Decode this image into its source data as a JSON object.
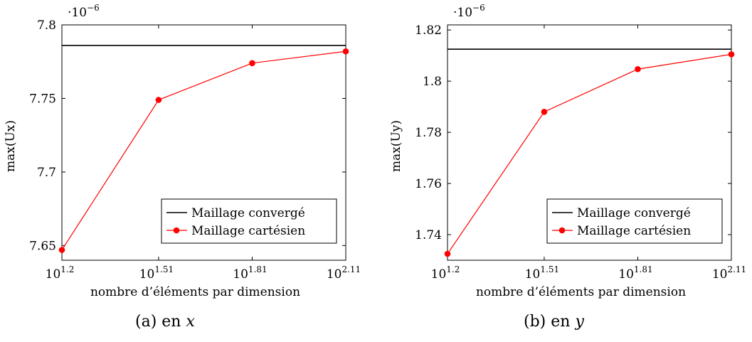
{
  "chart_data": [
    {
      "type": "line",
      "caption_label": "(a) en",
      "caption_var": "x",
      "xlabel": "nombre d’éléments par dimension",
      "ylabel": "max(Ux)",
      "scale_base": "·10",
      "scale_exp": "−6",
      "x_scale": "log",
      "x": [
        1.2,
        1.51,
        1.81,
        2.11
      ],
      "x_tick_base": "10",
      "x_tick_exps": [
        "1.2",
        "1.51",
        "1.81",
        "2.11"
      ],
      "ylim": [
        7.64,
        7.8
      ],
      "y_ticks": [
        7.65,
        7.7,
        7.75,
        7.8
      ],
      "y_tick_labels": [
        "7.65",
        "7.7",
        "7.75",
        "7.8"
      ],
      "legend_position": "bottom-right",
      "series": [
        {
          "name": "Maillage convergé",
          "color": "#000000",
          "constant": 7.786
        },
        {
          "name": "Maillage cartésien",
          "color": "#ff0000",
          "marker": "circle",
          "values": [
            7.647,
            7.749,
            7.774,
            7.782
          ]
        }
      ]
    },
    {
      "type": "line",
      "caption_label": "(b) en",
      "caption_var": "y",
      "xlabel": "nombre d’éléments par dimension",
      "ylabel": "max(Uy)",
      "scale_base": "·10",
      "scale_exp": "−6",
      "x_scale": "log",
      "x": [
        1.2,
        1.51,
        1.81,
        2.11
      ],
      "x_tick_base": "10",
      "x_tick_exps": [
        "1.2",
        "1.51",
        "1.81",
        "2.11"
      ],
      "ylim": [
        1.73,
        1.822
      ],
      "y_ticks": [
        1.74,
        1.76,
        1.78,
        1.8,
        1.82
      ],
      "y_tick_labels": [
        "1.74",
        "1.76",
        "1.78",
        "1.8",
        "1.82"
      ],
      "legend_position": "bottom-right",
      "series": [
        {
          "name": "Maillage convergé",
          "color": "#000000",
          "constant": 1.8125
        },
        {
          "name": "Maillage cartésien",
          "color": "#ff0000",
          "marker": "circle",
          "values": [
            1.7325,
            1.788,
            1.8047,
            1.8105
          ]
        }
      ]
    }
  ]
}
